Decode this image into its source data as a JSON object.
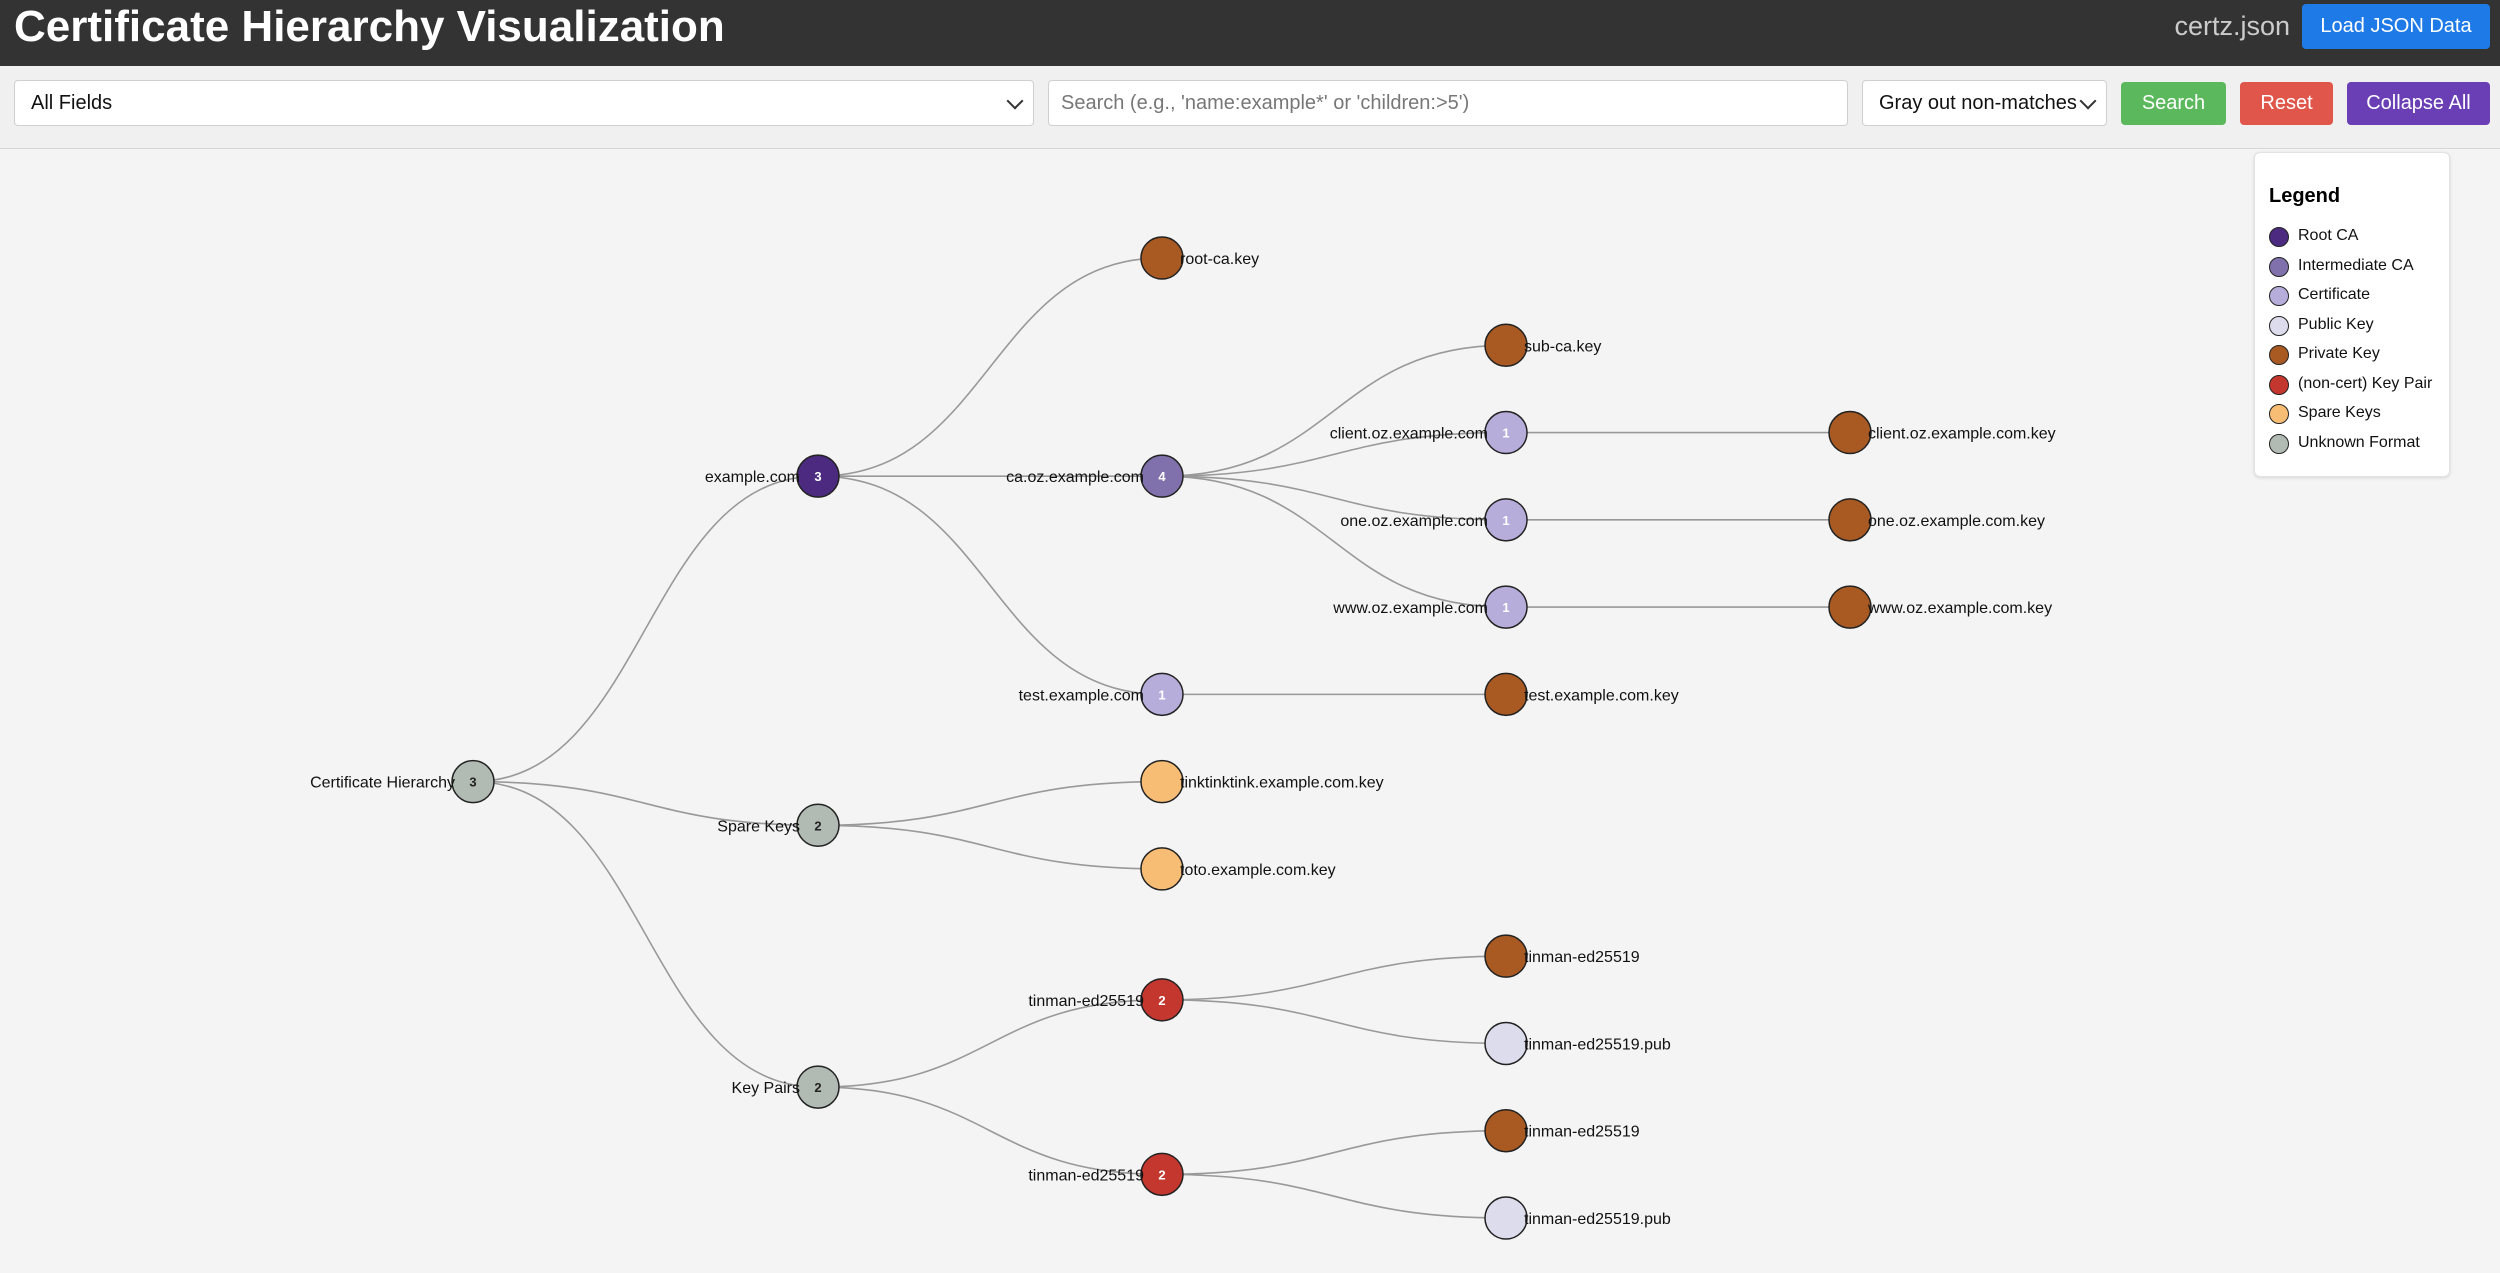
{
  "header": {
    "title": "Certificate Hierarchy Visualization",
    "filename": "certz.json",
    "load_button": "Load JSON Data"
  },
  "toolbar": {
    "field_select": "All Fields",
    "search_placeholder": "Search (e.g., 'name:example*' or 'children:>5')",
    "search_value": "",
    "mode_select": "Gray out non-matches",
    "search_button": "Search",
    "reset_button": "Reset",
    "collapse_button": "Collapse All",
    "colors": {
      "search": "#5cb85c",
      "reset": "#e0564a",
      "collapse": "#6a3fb5"
    }
  },
  "legend": {
    "title": "Legend",
    "items": [
      {
        "label": "Root CA",
        "color": "#4b2a7f"
      },
      {
        "label": "Intermediate CA",
        "color": "#8070ab"
      },
      {
        "label": "Certificate",
        "color": "#b7addb"
      },
      {
        "label": "Public Key",
        "color": "#dcdced"
      },
      {
        "label": "Private Key",
        "color": "#a85a22"
      },
      {
        "label": "(non-cert) Key Pair",
        "color": "#c4372f"
      },
      {
        "label": "Spare Keys",
        "color": "#f8bd74"
      },
      {
        "label": "Unknown Format",
        "color": "#b2bbb3"
      }
    ]
  },
  "tree": {
    "name": "Certificate Hierarchy",
    "type": "unknown",
    "count": "3",
    "children": [
      {
        "name": "example.com",
        "type": "root",
        "count": "3",
        "children": [
          {
            "name": "root-ca.key",
            "type": "private"
          },
          {
            "name": "ca.oz.example.com",
            "type": "intermediate",
            "count": "4",
            "children": [
              {
                "name": "sub-ca.key",
                "type": "private"
              },
              {
                "name": "client.oz.example.com",
                "type": "cert",
                "count": "1",
                "children": [
                  {
                    "name": "client.oz.example.com.key",
                    "type": "private"
                  }
                ]
              },
              {
                "name": "one.oz.example.com",
                "type": "cert",
                "count": "1",
                "children": [
                  {
                    "name": "one.oz.example.com.key",
                    "type": "private"
                  }
                ]
              },
              {
                "name": "www.oz.example.com",
                "type": "cert",
                "count": "1",
                "children": [
                  {
                    "name": "www.oz.example.com.key",
                    "type": "private"
                  }
                ]
              }
            ]
          },
          {
            "name": "test.example.com",
            "type": "cert",
            "count": "1",
            "children": [
              {
                "name": "test.example.com.key",
                "type": "private"
              }
            ]
          }
        ]
      },
      {
        "name": "Spare Keys",
        "type": "unknown",
        "count": "2",
        "children": [
          {
            "name": "tinktinktink.example.com.key",
            "type": "spare"
          },
          {
            "name": "toto.example.com.key",
            "type": "spare"
          }
        ]
      },
      {
        "name": "Key Pairs",
        "type": "unknown",
        "count": "2",
        "children": [
          {
            "name": "tinman-ed25519",
            "type": "keypair",
            "count": "2",
            "children": [
              {
                "name": "tinman-ed25519",
                "type": "private"
              },
              {
                "name": "tinman-ed25519.pub",
                "type": "public"
              }
            ]
          },
          {
            "name": "tinman-ed25519",
            "type": "keypair",
            "count": "2",
            "children": [
              {
                "name": "tinman-ed25519",
                "type": "private"
              },
              {
                "name": "tinman-ed25519.pub",
                "type": "public"
              }
            ]
          }
        ]
      }
    ]
  },
  "node_colors": {
    "root": "#4b2a7f",
    "intermediate": "#8070ab",
    "cert": "#b7addb",
    "public": "#dcdced",
    "private": "#a85a22",
    "keypair": "#c4372f",
    "spare": "#f8bd74",
    "unknown": "#b2bbb3"
  }
}
